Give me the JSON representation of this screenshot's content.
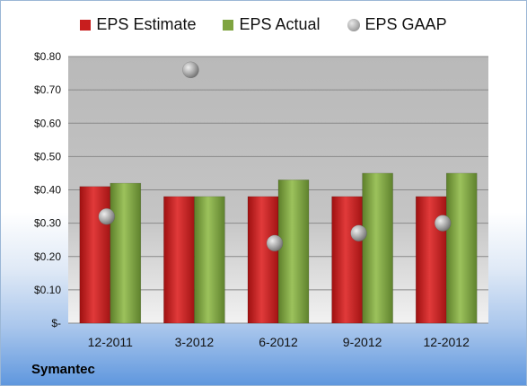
{
  "company": "Symantec",
  "colors": {
    "estimate": "#c81e1e",
    "actual": "#7fa440",
    "gaap": "#9c9c9c",
    "plot_bg": "#bdbdbd"
  },
  "chart_data": {
    "type": "bar",
    "categories": [
      "12-2011",
      "3-2012",
      "6-2012",
      "9-2012",
      "12-2012"
    ],
    "series": [
      {
        "name": "EPS Estimate",
        "type": "bar",
        "values": [
          0.41,
          0.38,
          0.38,
          0.38,
          0.38
        ]
      },
      {
        "name": "EPS Actual",
        "type": "bar",
        "values": [
          0.42,
          0.38,
          0.43,
          0.45,
          0.45
        ]
      },
      {
        "name": "EPS GAAP",
        "type": "scatter",
        "values": [
          0.32,
          0.76,
          0.24,
          0.27,
          0.3
        ]
      }
    ],
    "ylim": [
      0,
      0.8
    ],
    "yticks": [
      0,
      0.1,
      0.2,
      0.3,
      0.4,
      0.5,
      0.6,
      0.7,
      0.8
    ],
    "ytick_labels": [
      "$-",
      "$0.10",
      "$0.20",
      "$0.30",
      "$0.40",
      "$0.50",
      "$0.60",
      "$0.70",
      "$0.80"
    ],
    "grid": true,
    "legend": "top"
  }
}
